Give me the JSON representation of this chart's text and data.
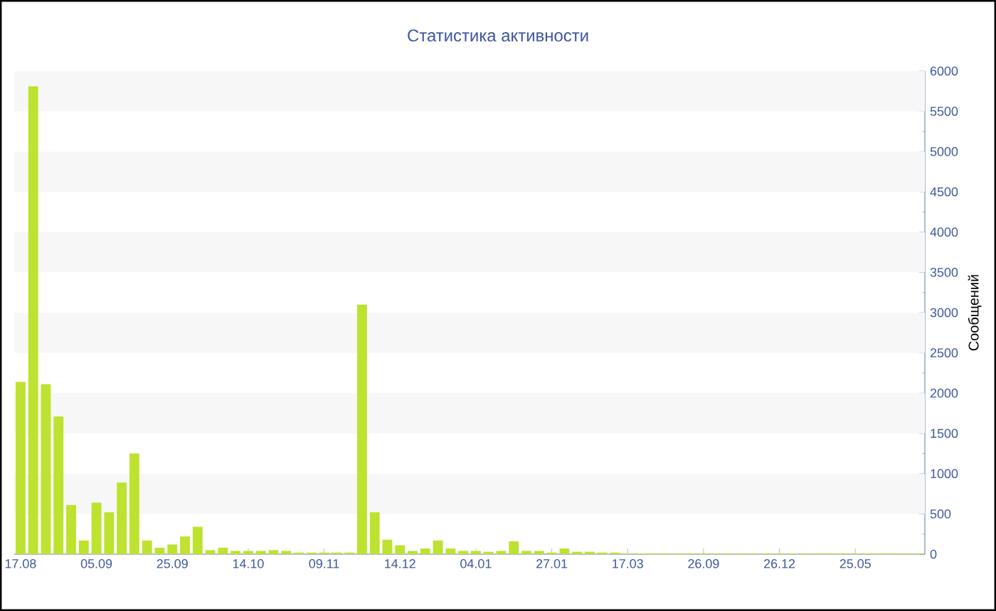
{
  "chart_data": {
    "type": "bar",
    "title": "Статистика активности",
    "ylabel": "Сообщений",
    "categories": [
      "17.08",
      null,
      null,
      null,
      null,
      null,
      "05.09",
      null,
      null,
      null,
      null,
      null,
      "25.09",
      null,
      null,
      null,
      null,
      null,
      "14.10",
      null,
      null,
      null,
      null,
      null,
      "09.11",
      null,
      null,
      null,
      null,
      null,
      "14.12",
      null,
      null,
      null,
      null,
      null,
      "04.01",
      null,
      null,
      null,
      null,
      null,
      "27.01",
      null,
      null,
      null,
      null,
      null,
      "17.03",
      null,
      null,
      null,
      null,
      null,
      "26.09",
      null,
      null,
      null,
      null,
      null,
      "26.12",
      null,
      null,
      null,
      null,
      null,
      "25.05",
      null,
      null,
      null,
      null,
      null
    ],
    "values": [
      2140,
      5810,
      2110,
      1710,
      610,
      170,
      640,
      520,
      890,
      1250,
      170,
      80,
      120,
      220,
      340,
      50,
      80,
      40,
      40,
      40,
      50,
      40,
      20,
      20,
      20,
      20,
      20,
      3100,
      520,
      180,
      110,
      40,
      70,
      170,
      70,
      40,
      40,
      30,
      40,
      160,
      40,
      40,
      20,
      70,
      30,
      30,
      20,
      20,
      10,
      10,
      10,
      10,
      10,
      10,
      10,
      10,
      10,
      10,
      10,
      10,
      10,
      10,
      10,
      10,
      10,
      10,
      10,
      10,
      10,
      10,
      10,
      10
    ],
    "color": "#bde22f",
    "ylim": [
      0,
      6000
    ],
    "yticks": [
      0,
      500,
      1000,
      1500,
      2000,
      2500,
      3000,
      3500,
      4000,
      4500,
      5000,
      5500,
      6000
    ],
    "bands": [
      {
        "axis": "y",
        "from": 500,
        "to": 1000,
        "color": "#f7f7f7"
      },
      {
        "axis": "y",
        "from": 1500,
        "to": 2000,
        "color": "#f7f7f7"
      },
      {
        "axis": "y",
        "from": 2500,
        "to": 3000,
        "color": "#f7f7f7"
      },
      {
        "axis": "y",
        "from": 3500,
        "to": 4000,
        "color": "#f7f7f7"
      },
      {
        "axis": "y",
        "from": 4500,
        "to": 5000,
        "color": "#f7f7f7"
      },
      {
        "axis": "y",
        "from": 5500,
        "to": 6000,
        "color": "#f7f7f7"
      }
    ]
  }
}
